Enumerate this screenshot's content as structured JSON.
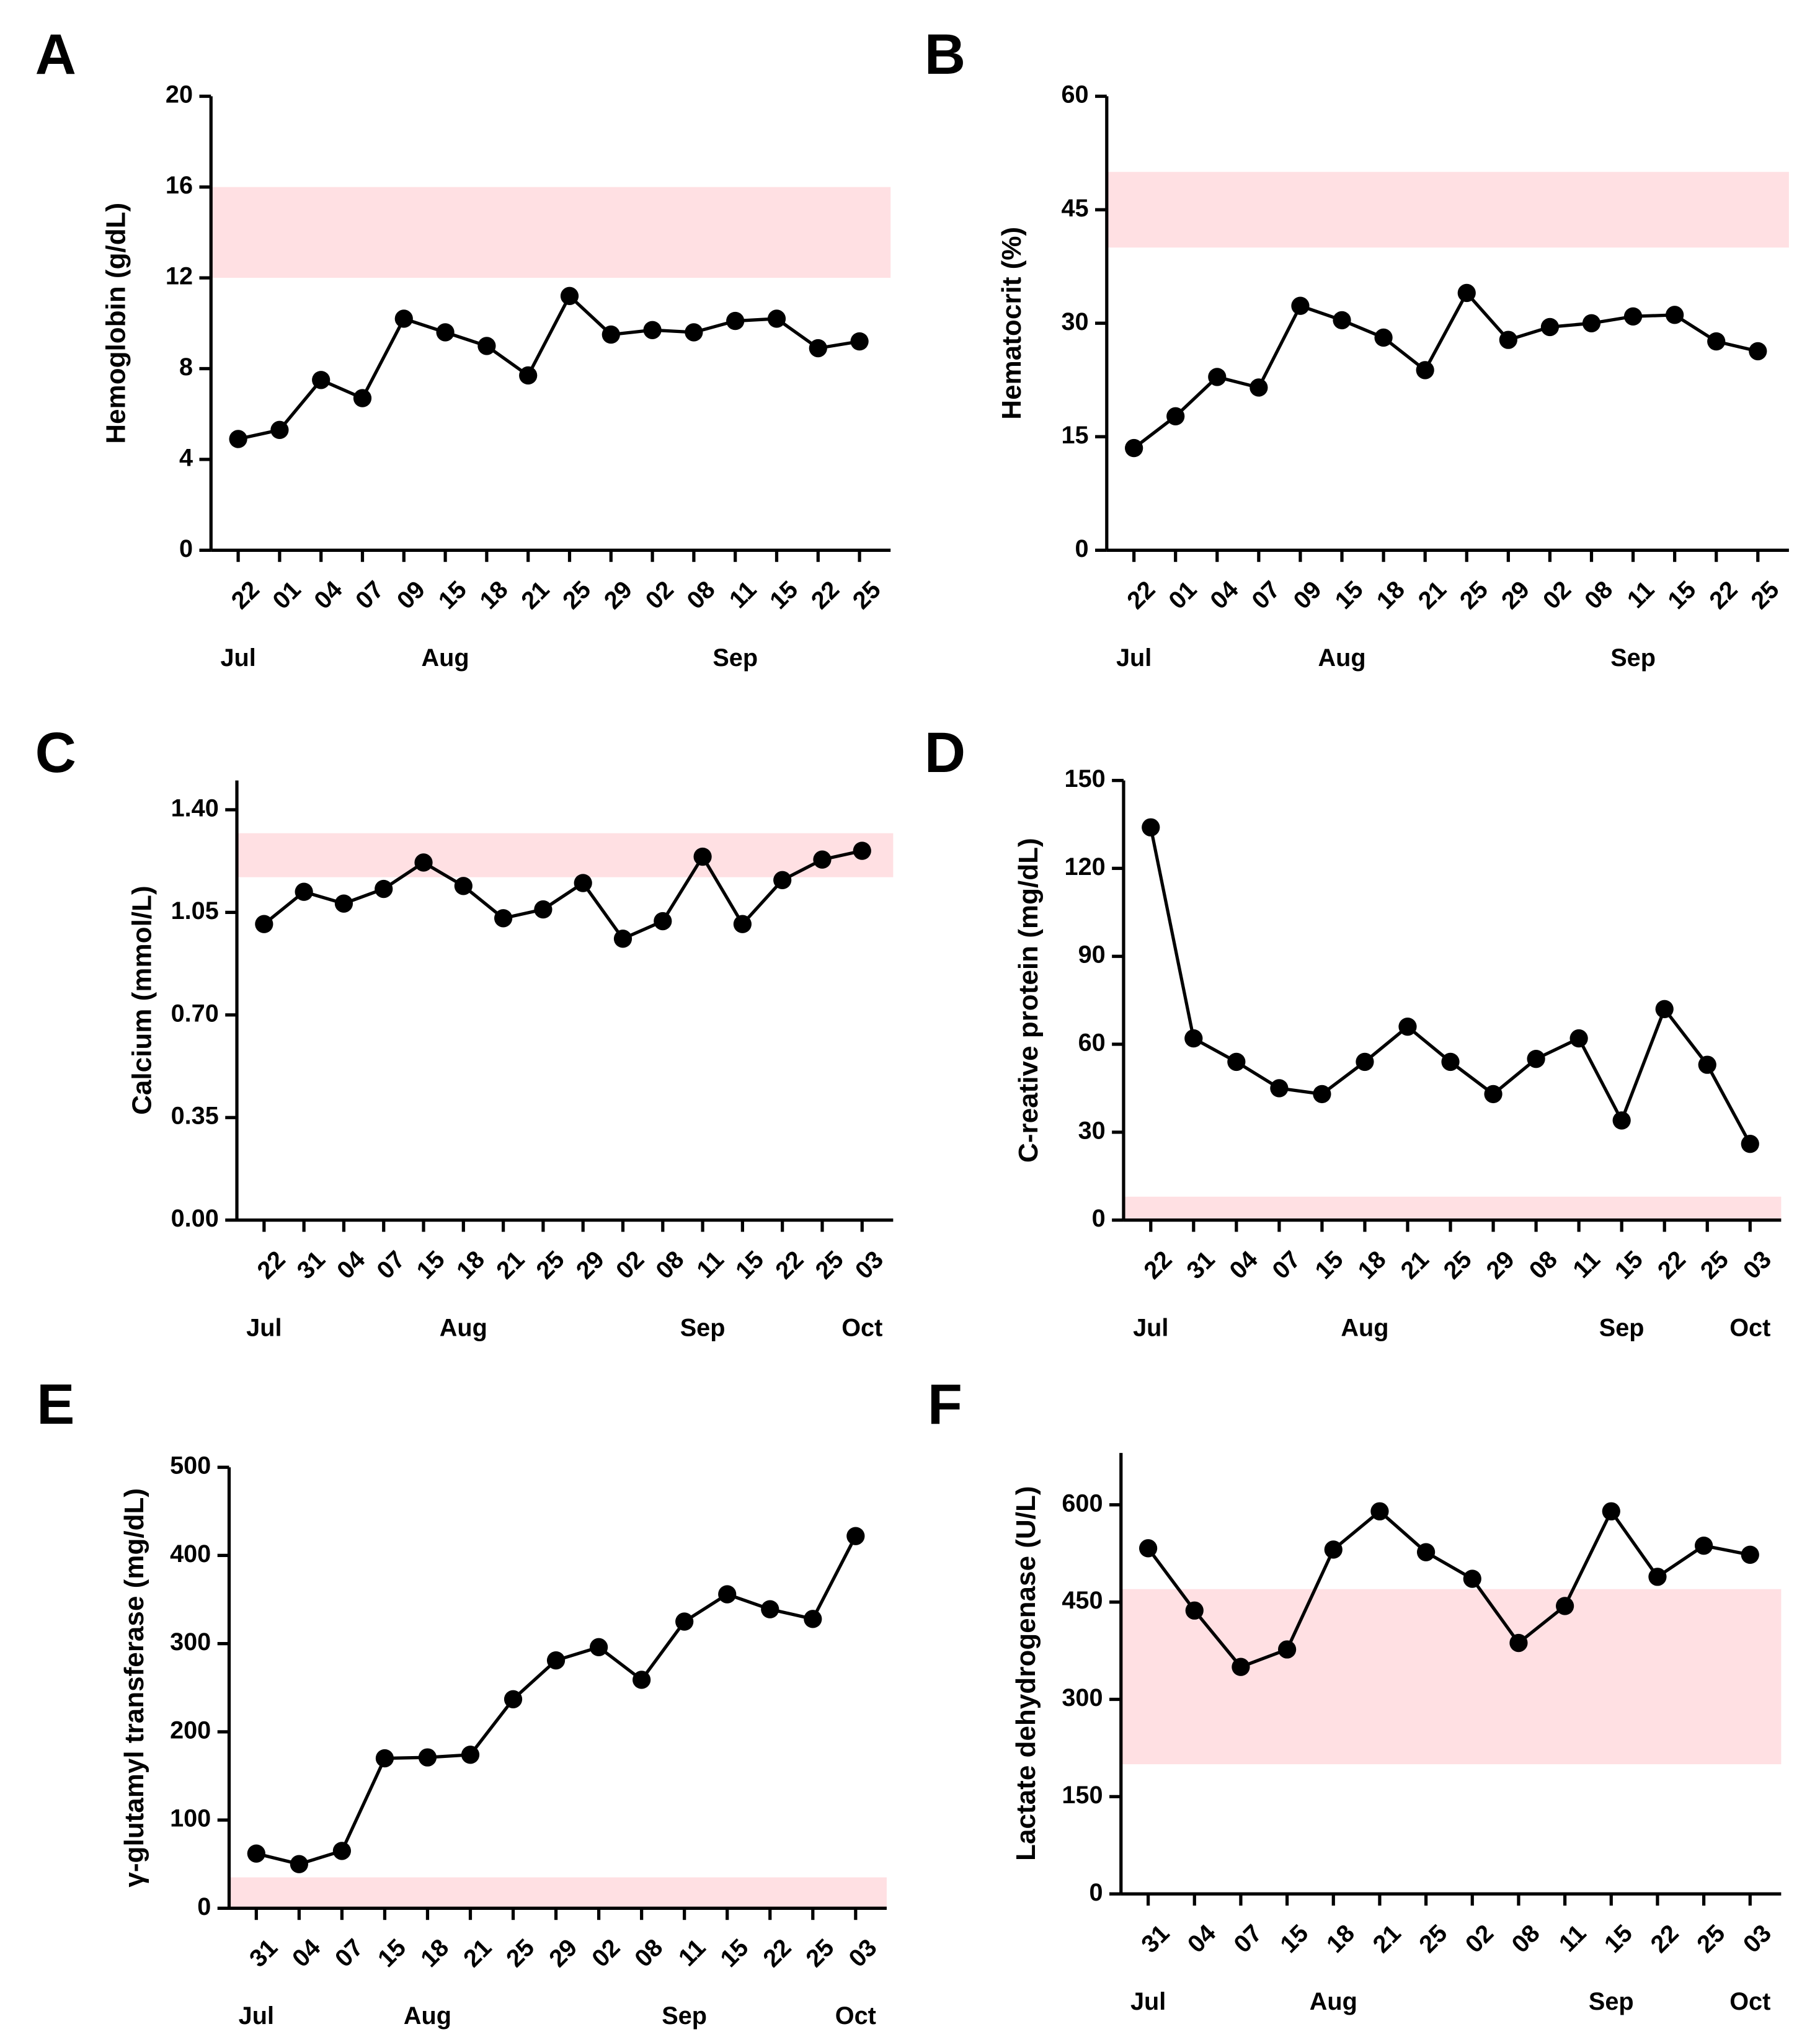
{
  "chart_data": [
    {
      "type": "line",
      "panel": "A",
      "y_label": "Hemoglobin (g/dL)",
      "color": "#000000",
      "band_color": "#ffe0e3",
      "categories": [
        "22",
        "01",
        "04",
        "07",
        "09",
        "15",
        "18",
        "21",
        "25",
        "29",
        "02",
        "08",
        "11",
        "15",
        "22",
        "25"
      ],
      "months": [
        "Jul",
        null,
        null,
        null,
        null,
        "Aug",
        null,
        null,
        null,
        null,
        null,
        null,
        "Sep",
        null,
        null,
        null
      ],
      "values": [
        4.9,
        5.3,
        7.5,
        6.7,
        10.2,
        9.6,
        9.0,
        7.7,
        11.2,
        9.5,
        9.7,
        9.6,
        10.1,
        10.2,
        8.9,
        9.2
      ],
      "reference_range": [
        12,
        16
      ],
      "ylim": [
        0,
        20
      ],
      "yticks": [
        0,
        4,
        8,
        12,
        16,
        20
      ]
    },
    {
      "type": "line",
      "panel": "B",
      "y_label": "Hematocrit (%)",
      "color": "#000000",
      "band_color": "#ffe0e3",
      "categories": [
        "22",
        "01",
        "04",
        "07",
        "09",
        "15",
        "18",
        "21",
        "25",
        "29",
        "02",
        "08",
        "11",
        "15",
        "22",
        "25"
      ],
      "months": [
        "Jul",
        null,
        null,
        null,
        null,
        "Aug",
        null,
        null,
        null,
        null,
        null,
        null,
        "Sep",
        null,
        null,
        null
      ],
      "values": [
        13.5,
        17.7,
        22.9,
        21.5,
        32.3,
        30.4,
        28.1,
        23.8,
        34.0,
        27.8,
        29.5,
        30.0,
        30.9,
        31.1,
        27.6,
        26.3
      ],
      "reference_range": [
        40,
        50
      ],
      "ylim": [
        0,
        60
      ],
      "yticks": [
        0,
        15,
        30,
        45,
        60
      ]
    },
    {
      "type": "line",
      "panel": "C",
      "y_label": "Calcium (mmol/L)",
      "color": "#000000",
      "band_color": "#ffe0e3",
      "categories": [
        "22",
        "31",
        "04",
        "07",
        "15",
        "18",
        "21",
        "25",
        "29",
        "02",
        "08",
        "11",
        "15",
        "22",
        "25",
        "03"
      ],
      "months": [
        "Jul",
        null,
        null,
        null,
        null,
        "Aug",
        null,
        null,
        null,
        null,
        null,
        "Sep",
        null,
        null,
        null,
        "Oct"
      ],
      "values": [
        1.01,
        1.12,
        1.08,
        1.13,
        1.22,
        1.14,
        1.03,
        1.06,
        1.15,
        0.96,
        1.02,
        1.24,
        1.01,
        1.16,
        1.23,
        1.26
      ],
      "reference_range": [
        1.17,
        1.32
      ],
      "ylim": [
        0,
        1.5
      ],
      "yticks": [
        {
          "value": 0,
          "label": "0.00"
        },
        {
          "value": 0.35,
          "label": "0.35"
        },
        {
          "value": 0.7,
          "label": "0.70"
        },
        {
          "value": 1.05,
          "label": "1.05"
        },
        {
          "value": 1.4,
          "label": "1.40"
        }
      ]
    },
    {
      "type": "line",
      "panel": "D",
      "y_label": "C-reative protein (mg/dL)",
      "color": "#000000",
      "band_color": "#ffe0e3",
      "categories": [
        "22",
        "31",
        "04",
        "07",
        "15",
        "18",
        "21",
        "25",
        "29",
        "08",
        "11",
        "15",
        "22",
        "25",
        "03"
      ],
      "months": [
        "Jul",
        null,
        null,
        null,
        null,
        "Aug",
        null,
        null,
        null,
        null,
        null,
        "Sep",
        null,
        null,
        "Oct"
      ],
      "values": [
        134,
        62,
        54,
        45,
        43,
        54,
        66,
        54,
        43,
        55,
        62,
        34,
        72,
        53,
        26
      ],
      "reference_range": [
        0,
        8
      ],
      "ylim": [
        0,
        150
      ],
      "yticks": [
        0,
        30,
        60,
        90,
        120,
        150
      ]
    },
    {
      "type": "line",
      "panel": "E",
      "y_label": "γ-glutamyl transferase (mg/dL)",
      "color": "#000000",
      "band_color": "#ffe0e3",
      "categories": [
        "31",
        "04",
        "07",
        "15",
        "18",
        "21",
        "25",
        "29",
        "02",
        "08",
        "11",
        "15",
        "22",
        "25",
        "03"
      ],
      "months": [
        "Jul",
        null,
        null,
        null,
        "Aug",
        null,
        null,
        null,
        null,
        null,
        "Sep",
        null,
        null,
        null,
        "Oct"
      ],
      "values": [
        62,
        50,
        65,
        170,
        171,
        174,
        237,
        281,
        296,
        259,
        325,
        356,
        339,
        328,
        422
      ],
      "reference_range": [
        0,
        35
      ],
      "ylim": [
        0,
        500
      ],
      "yticks": [
        0,
        100,
        200,
        300,
        400,
        500
      ]
    },
    {
      "type": "line",
      "panel": "F",
      "y_label": "Lactate dehydrogenase (U/L)",
      "color": "#000000",
      "band_color": "#ffe0e3",
      "categories": [
        "31",
        "04",
        "07",
        "15",
        "18",
        "21",
        "25",
        "02",
        "08",
        "11",
        "15",
        "22",
        "25",
        "03"
      ],
      "months": [
        "Jul",
        null,
        null,
        null,
        "Aug",
        null,
        null,
        null,
        null,
        null,
        "Sep",
        null,
        null,
        "Oct"
      ],
      "values": [
        533,
        437,
        350,
        377,
        531,
        590,
        527,
        486,
        387,
        444,
        590,
        489,
        537,
        523
      ],
      "reference_range": [
        200,
        470
      ],
      "ylim": [
        0,
        680
      ],
      "yticks": [
        0,
        150,
        300,
        450,
        600
      ]
    }
  ]
}
